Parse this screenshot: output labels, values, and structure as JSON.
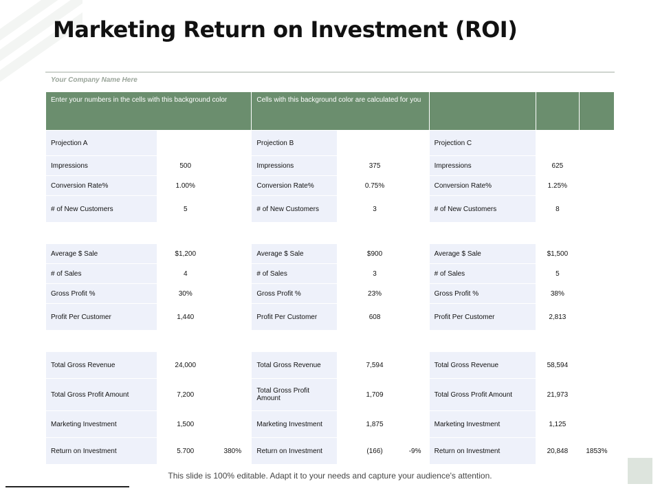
{
  "title": "Marketing Return on Investment (ROI)",
  "company": "Your Company Name Here",
  "header": {
    "input_note": "Enter your numbers in the cells with this background color",
    "calc_note": "Cells with this background color are calculated for you"
  },
  "projections": [
    "Projection A",
    "Projection B",
    "Projection C"
  ],
  "rows": [
    {
      "label_a": "Impressions",
      "a": "500",
      "label_b": "Impressions",
      "b": "375",
      "label_c": "Impressions",
      "c": "625"
    },
    {
      "label_a": "Conversion Rate%",
      "a": "1.00%",
      "label_b": "Conversion Rate%",
      "b": "0.75%",
      "label_c": "Conversion Rate%",
      "c": "1.25%"
    },
    {
      "label_a": "# of New Customers",
      "a": "5",
      "label_b": "# of New Customers",
      "b": "3",
      "label_c": "# of New Customers",
      "c": "8"
    },
    {
      "label_a": "Average $ Sale",
      "a": "$1,200",
      "label_b": "Average $ Sale",
      "b": "$900",
      "label_c": "Average $ Sale",
      "c": "$1,500"
    },
    {
      "label_a": "# of Sales",
      "a": "4",
      "label_b": "# of Sales",
      "b": "3",
      "label_c": "# of Sales",
      "c": "5"
    },
    {
      "label_a": "Gross Profit %",
      "a": "30%",
      "label_b": "Gross Profit %",
      "b": "23%",
      "label_c": "Gross Profit %",
      "c": "38%"
    },
    {
      "label_a": "Profit Per Customer",
      "a": "1,440",
      "label_b": "Profit Per Customer",
      "b": "608",
      "label_c": "Profit Per Customer",
      "c": "2,813"
    },
    {
      "label_a": "Total Gross Revenue",
      "a": "24,000",
      "label_b": "Total Gross Revenue",
      "b": "7,594",
      "label_c": "Total Gross Revenue",
      "c": "58,594"
    },
    {
      "label_a": "Total Gross Profit Amount",
      "a": "7,200",
      "label_b": "Total Gross Profit Amount",
      "b": "1,709",
      "label_c": "Total Gross Profit Amount",
      "c": "21,973"
    },
    {
      "label_a": "Marketing Investment",
      "a": "1,500",
      "label_b": "Marketing Investment",
      "b": "1,875",
      "label_c": "Marketing Investment",
      "c": "1,125"
    },
    {
      "label_a": "Return on Investment",
      "a": "5.700",
      "pct_a": "380%",
      "label_b": "Return on Investment",
      "b": "(166)",
      "pct_b": "-9%",
      "label_c": "Return on Investment",
      "c": "20,848",
      "pct_c": "1853%"
    }
  ],
  "footer": "This slide is 100% editable. Adapt it to your needs and capture your audience's attention.",
  "colors": {
    "header_bg": "#6b8e6e",
    "label_bg": "#eef1fa"
  }
}
